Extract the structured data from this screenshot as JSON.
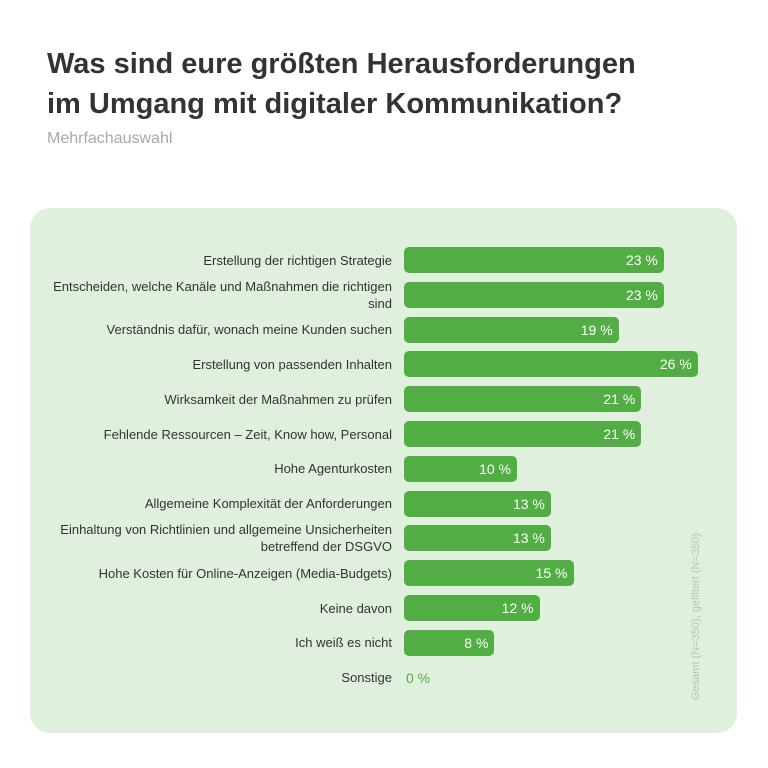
{
  "title_line1": "Was sind eure größten Herausforderungen",
  "title_line2": "im Umgang mit digitaler Kommunikation?",
  "subtitle": "Mehrfachauswahl",
  "note": "Gesamt (N=350), gefiltert (N=350)",
  "colors": {
    "bar": "#52ad45",
    "panel": "#dff0dc"
  },
  "chart_data": {
    "type": "bar",
    "orientation": "horizontal",
    "title": "Was sind eure größten Herausforderungen im Umgang mit digitaler Kommunikation?",
    "subtitle": "Mehrfachauswahl",
    "unit": "%",
    "categories": [
      "Erstellung der richtigen Strategie",
      "Entscheiden, welche Kanäle und Maßnahmen die richtigen sind",
      "Verständnis dafür, wonach meine Kunden suchen",
      "Erstellung von passenden Inhalten",
      "Wirksamkeit der Maßnahmen zu prüfen",
      "Fehlende Ressourcen – Zeit, Know how, Personal",
      "Hohe Agenturkosten",
      "Allgemeine Komplexität der Anforderungen",
      "Einhaltung von Richtlinien und allgemeine Unsicherheiten betreffend der DSGVO",
      "Hohe Kosten für Online-Anzeigen (Media-Budgets)",
      "Keine davon",
      "Ich weiß es nicht",
      "Sonstige"
    ],
    "values": [
      23,
      23,
      19,
      26,
      21,
      21,
      10,
      13,
      13,
      15,
      12,
      8,
      0
    ],
    "labels": [
      "23 %",
      "23 %",
      "19 %",
      "26 %",
      "21 %",
      "21 %",
      "10 %",
      "13 %",
      "13 %",
      "15 %",
      "12 %",
      "8 %",
      "0 %"
    ]
  }
}
